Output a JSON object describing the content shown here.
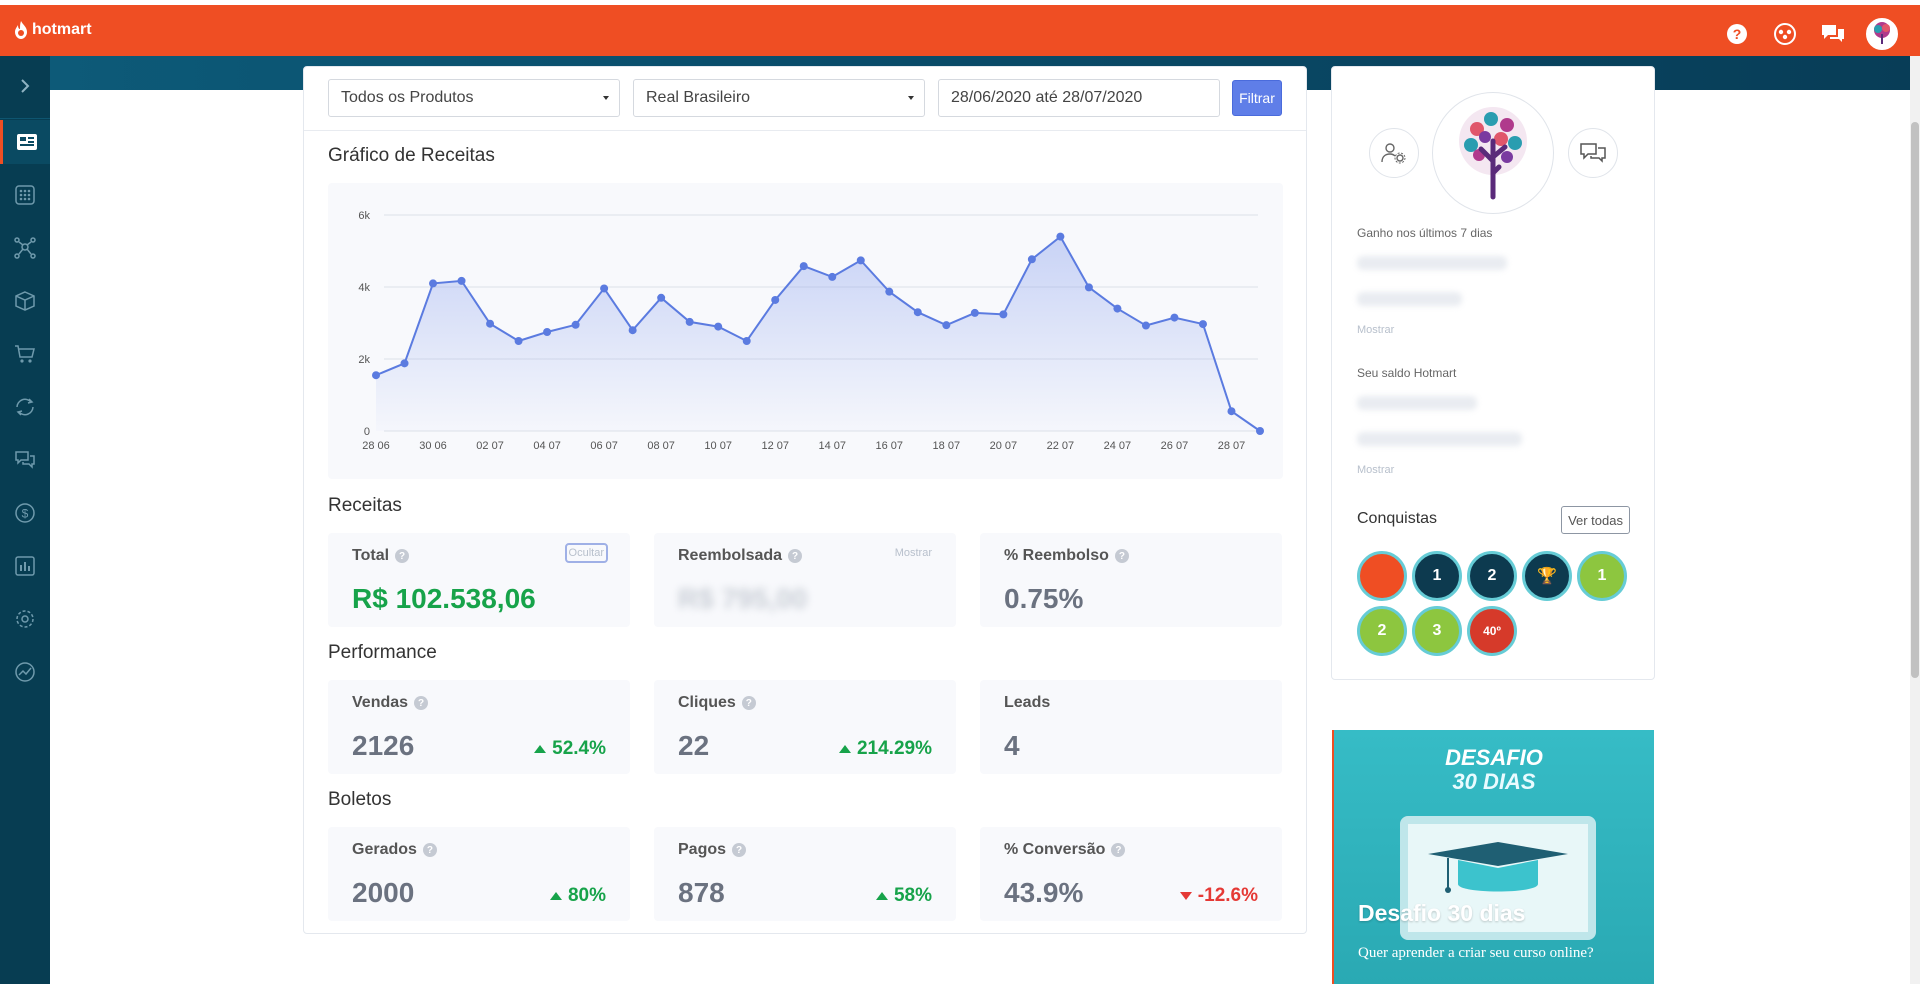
{
  "header": {
    "brand": "hotmart"
  },
  "filters": {
    "products": "Todos os Produtos",
    "currency": "Real Brasileiro",
    "date_range": "28/06/2020 até 28/07/2020",
    "filter_button": "Filtrar"
  },
  "revenue_chart": {
    "title": "Gráfico de Receitas"
  },
  "chart_data": {
    "type": "area",
    "title": "Gráfico de Receitas",
    "xlabel": "",
    "ylabel": "",
    "ylim": [
      0,
      6000
    ],
    "yticks": [
      "0",
      "2k",
      "4k",
      "6k"
    ],
    "grid": true,
    "x_tick_labels": [
      "28 06",
      "30 06",
      "02 07",
      "04 07",
      "06 07",
      "08 07",
      "10 07",
      "12 07",
      "14 07",
      "16 07",
      "18 07",
      "20 07",
      "22 07",
      "24 07",
      "26 07",
      "28 07"
    ],
    "x": [
      "28 06",
      "29 06",
      "30 06",
      "01 07",
      "02 07",
      "03 07",
      "04 07",
      "05 07",
      "06 07",
      "07 07",
      "08 07",
      "09 07",
      "10 07",
      "11 07",
      "12 07",
      "13 07",
      "14 07",
      "15 07",
      "16 07",
      "17 07",
      "18 07",
      "19 07",
      "20 07",
      "21 07",
      "22 07",
      "23 07",
      "24 07",
      "25 07",
      "26 07",
      "27 07",
      "28 07",
      "29 07"
    ],
    "values": [
      1550,
      1880,
      4100,
      4170,
      2980,
      2500,
      2750,
      2950,
      3960,
      2800,
      3700,
      3030,
      2900,
      2500,
      3640,
      4580,
      4280,
      4740,
      3870,
      3300,
      2940,
      3280,
      3240,
      4770,
      5400,
      3990,
      3400,
      2930,
      3150,
      2970,
      550,
      0
    ]
  },
  "receitas": {
    "title": "Receitas",
    "total_label": "Total",
    "total_value": "R$ 102.538,06",
    "hide_link": "Ocultar",
    "refunded_label": "Reembolsada",
    "refunded_value": "R$ 795,00",
    "show_link": "Mostrar",
    "refund_pct_label": "% Reembolso",
    "refund_pct_value": "0.75%"
  },
  "performance": {
    "title": "Performance",
    "sales_label": "Vendas",
    "sales_value": "2126",
    "sales_delta": "52.4%",
    "clicks_label": "Cliques",
    "clicks_value": "22",
    "clicks_delta": "214.29%",
    "leads_label": "Leads",
    "leads_value": "4"
  },
  "boletos": {
    "title": "Boletos",
    "generated_label": "Gerados",
    "generated_value": "2000",
    "generated_delta": "80%",
    "paid_label": "Pagos",
    "paid_value": "878",
    "paid_delta": "58%",
    "conversion_label": "% Conversão",
    "conversion_value": "43.9%",
    "conversion_delta": "-12.6%"
  },
  "profile": {
    "earned_label": "Ganho nos últimos 7 dias",
    "show_link_1": "Mostrar",
    "balance_label": "Seu saldo Hotmart",
    "show_link_2": "Mostrar",
    "achievements_title": "Conquistas",
    "see_all": "Ver todas",
    "badges": [
      {
        "icon": "certificate-badge-icon",
        "label": ""
      },
      {
        "icon": "cart-badge-icon",
        "label": "1"
      },
      {
        "icon": "cart-badge-icon",
        "label": "2"
      },
      {
        "icon": "trophy-badge-icon",
        "label": ""
      },
      {
        "icon": "money-badge-icon",
        "label": "1"
      },
      {
        "icon": "money-badge-icon",
        "label": "2"
      },
      {
        "icon": "money-badge-icon",
        "label": "3"
      },
      {
        "icon": "sun-badge-icon",
        "label": "40º"
      }
    ]
  },
  "promo": {
    "head_line1": "DESAFIO",
    "head_line2": "30 DIAS",
    "title": "Desafio 30 dias",
    "text": "Quer aprender a criar seu curso online?"
  },
  "colors": {
    "brand": "#ef4e23",
    "sidebar": "#073d52",
    "chart_line": "#5b7be0",
    "positive": "#17a34a",
    "negative": "#e53935",
    "filter_button": "#5f7ee8"
  }
}
